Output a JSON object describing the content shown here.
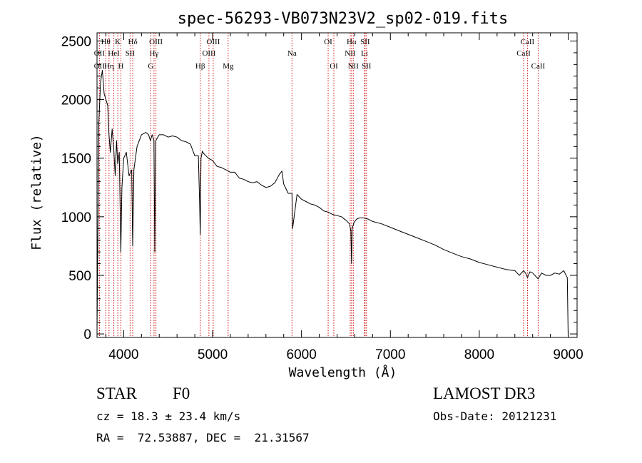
{
  "chart_data": {
    "type": "line",
    "title": "spec-56293-VB073N23V2_sp02-019.fits",
    "xlabel": "Wavelength (Å)",
    "ylabel": "Flux (relative)",
    "xlim": [
      3700,
      9100
    ],
    "ylim": [
      -30,
      2570
    ],
    "xticks": [
      4000,
      5000,
      6000,
      7000,
      8000,
      9000
    ],
    "yticks": [
      0,
      500,
      1000,
      1500,
      2000,
      2500
    ],
    "series": [
      {
        "name": "spectrum",
        "x": [
          3700,
          3720,
          3740,
          3760,
          3780,
          3800,
          3820,
          3835,
          3850,
          3870,
          3890,
          3905,
          3920,
          3933,
          3950,
          3968,
          3980,
          4000,
          4030,
          4060,
          4090,
          4101,
          4115,
          4150,
          4200,
          4250,
          4280,
          4300,
          4320,
          4340,
          4350,
          4360,
          4400,
          4450,
          4500,
          4550,
          4600,
          4650,
          4700,
          4750,
          4800,
          4840,
          4855,
          4861,
          4870,
          4885,
          4900,
          4950,
          5000,
          5050,
          5100,
          5150,
          5200,
          5250,
          5300,
          5350,
          5400,
          5450,
          5500,
          5550,
          5600,
          5650,
          5700,
          5750,
          5780,
          5800,
          5850,
          5893,
          5900,
          5950,
          6000,
          6050,
          6100,
          6150,
          6200,
          6250,
          6300,
          6350,
          6400,
          6450,
          6500,
          6540,
          6556,
          6563,
          6570,
          6590,
          6620,
          6650,
          6700,
          6750,
          6800,
          6900,
          7000,
          7100,
          7200,
          7300,
          7400,
          7500,
          7600,
          7700,
          7800,
          7900,
          8000,
          8100,
          8200,
          8300,
          8400,
          8450,
          8498,
          8520,
          8542,
          8570,
          8600,
          8662,
          8700,
          8750,
          8800,
          8850,
          8900,
          8950,
          8990,
          9000
        ],
        "y": [
          30,
          1800,
          2150,
          2250,
          2050,
          2000,
          1950,
          1700,
          1550,
          1750,
          1550,
          1350,
          1650,
          1450,
          1550,
          700,
          1250,
          1500,
          1550,
          1350,
          1400,
          750,
          1400,
          1600,
          1700,
          1720,
          1700,
          1650,
          1700,
          1650,
          700,
          1650,
          1700,
          1700,
          1680,
          1690,
          1680,
          1650,
          1640,
          1620,
          1520,
          1520,
          1100,
          850,
          1500,
          1560,
          1540,
          1500,
          1480,
          1430,
          1420,
          1400,
          1380,
          1380,
          1330,
          1320,
          1300,
          1290,
          1300,
          1270,
          1250,
          1260,
          1290,
          1360,
          1390,
          1280,
          1200,
          1200,
          900,
          1190,
          1150,
          1130,
          1110,
          1100,
          1080,
          1050,
          1040,
          1020,
          1010,
          1000,
          970,
          940,
          880,
          600,
          900,
          950,
          980,
          990,
          990,
          980,
          960,
          940,
          910,
          880,
          850,
          820,
          790,
          760,
          720,
          690,
          660,
          640,
          610,
          590,
          570,
          550,
          540,
          500,
          540,
          520,
          480,
          530,
          520,
          470,
          520,
          500,
          500,
          520,
          510,
          540,
          480,
          -20
        ]
      }
    ],
    "line_markers": [
      {
        "label": "Hθ",
        "x": 3798,
        "row": 1
      },
      {
        "label": "OII",
        "x": 3727,
        "row": 2
      },
      {
        "label": "OII",
        "x": 3727,
        "row": 3
      },
      {
        "label": "Hη",
        "x": 3835,
        "row": 3
      },
      {
        "label": "K",
        "x": 3934,
        "row": 1
      },
      {
        "label": "HeI",
        "x": 3889,
        "row": 2
      },
      {
        "label": "H",
        "x": 3969,
        "row": 3
      },
      {
        "label": "SII",
        "x": 4072,
        "row": 2
      },
      {
        "label": "Hδ",
        "x": 4102,
        "row": 1
      },
      {
        "label": "OIII",
        "x": 4363,
        "row": 1
      },
      {
        "label": "Hγ",
        "x": 4341,
        "row": 2
      },
      {
        "label": "G",
        "x": 4305,
        "row": 3
      },
      {
        "label": "Hβ",
        "x": 4861,
        "row": 3
      },
      {
        "label": "OIII",
        "x": 5007,
        "row": 1
      },
      {
        "label": "OIII",
        "x": 4959,
        "row": 2
      },
      {
        "label": "Mg",
        "x": 5175,
        "row": 3
      },
      {
        "label": "Na",
        "x": 5893,
        "row": 2
      },
      {
        "label": "OI",
        "x": 6300,
        "row": 1
      },
      {
        "label": "OI",
        "x": 6364,
        "row": 3
      },
      {
        "label": "Hα",
        "x": 6563,
        "row": 1
      },
      {
        "label": "SII",
        "x": 6716,
        "row": 1
      },
      {
        "label": "NII",
        "x": 6548,
        "row": 2
      },
      {
        "label": "Li",
        "x": 6708,
        "row": 2
      },
      {
        "label": "NII",
        "x": 6583,
        "row": 3
      },
      {
        "label": "SII",
        "x": 6731,
        "row": 3
      },
      {
        "label": "CaII",
        "x": 8542,
        "row": 1
      },
      {
        "label": "CaII",
        "x": 8498,
        "row": 2
      },
      {
        "label": "CaII",
        "x": 8662,
        "row": 3
      }
    ]
  },
  "info": {
    "object_class": "STAR",
    "subclass": "F0",
    "survey": "LAMOST DR3",
    "redshift": "cz = 18.3 ± 23.4 km/s",
    "obs_date": "Obs-Date: 20121231",
    "coords": "RA =  72.53887, DEC =  21.31567"
  },
  "colors": {
    "axis": "#000000",
    "spectrum": "#000000",
    "marker": "#cc0000"
  }
}
